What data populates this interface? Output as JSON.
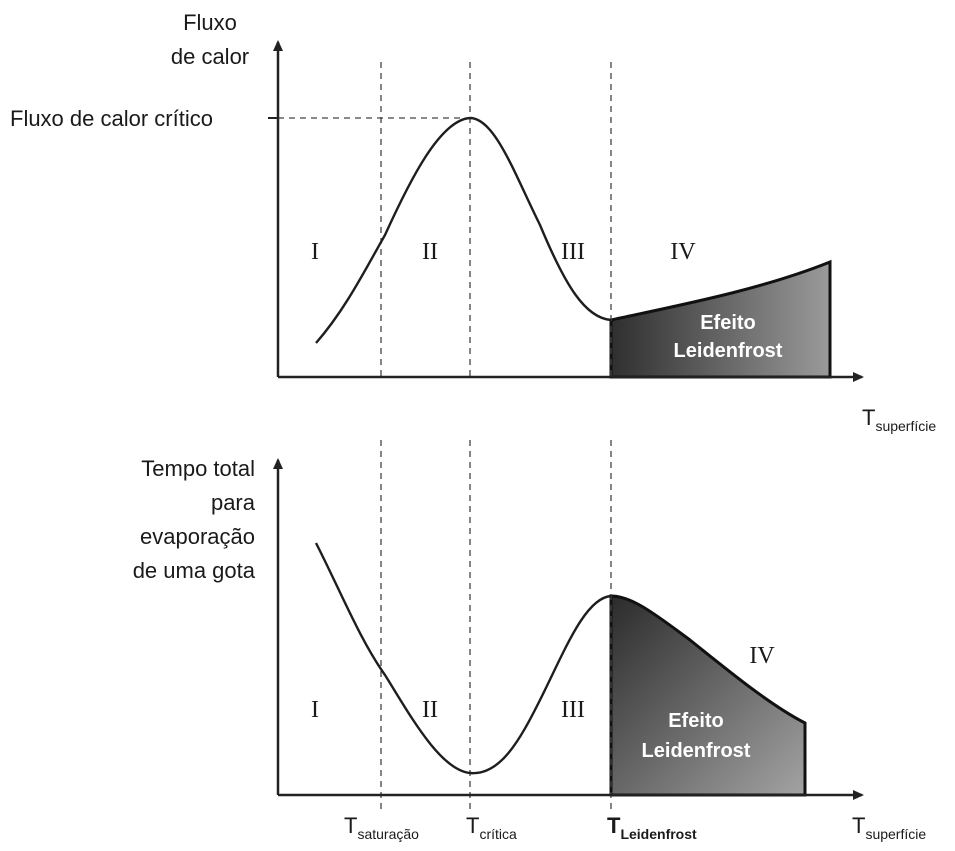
{
  "top_panel": {
    "y_axis_label_lines": [
      "Fluxo",
      "de calor"
    ],
    "critical_label": "Fluxo de calor crítico",
    "x_axis_label": {
      "main": "T",
      "sub": "superfície"
    },
    "regions": [
      "I",
      "II",
      "III",
      "IV"
    ],
    "effect_label_lines": [
      "Efeito",
      "Leidenfrost"
    ]
  },
  "bottom_panel": {
    "y_axis_label_lines": [
      "Tempo total",
      "para",
      "evaporação",
      "de uma gota"
    ],
    "x_axis_label": {
      "main": "T",
      "sub": "superfície"
    },
    "regions": [
      "I",
      "II",
      "III",
      "IV"
    ],
    "effect_label_lines": [
      "Efeito",
      "Leidenfrost"
    ],
    "temperature_marks": [
      {
        "main": "T",
        "sub": "saturação"
      },
      {
        "main": "T",
        "sub": "crítica"
      },
      {
        "main": "T",
        "sub": "Leidenfrost"
      }
    ]
  },
  "colors": {
    "shade_dark": "#2f2f2f",
    "shade_light": "#9a9a9a",
    "line": "#1e1e1e"
  }
}
